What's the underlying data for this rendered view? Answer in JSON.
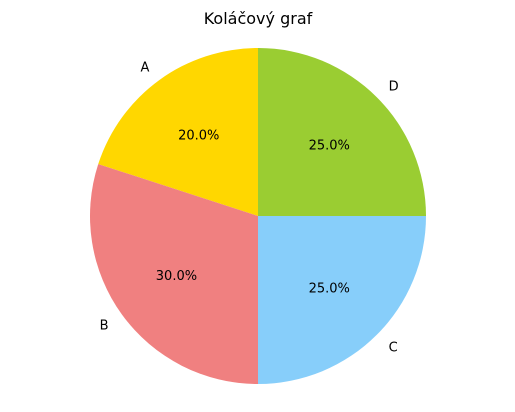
{
  "chart_data": {
    "type": "pie",
    "title": "Koláčový graf",
    "categories": [
      "A",
      "B",
      "C",
      "D"
    ],
    "values": [
      20.0,
      30.0,
      25.0,
      25.0
    ],
    "value_labels": [
      "20.0%",
      "30.0%",
      "25.0%",
      "25.0%"
    ],
    "colors": [
      "#ffd700",
      "#f08080",
      "#87cefa",
      "#9acd32"
    ],
    "start_angle_degrees": 90,
    "direction": "counterclockwise"
  }
}
